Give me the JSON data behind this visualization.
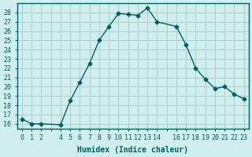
{
  "x": [
    0,
    1,
    2,
    4,
    5,
    6,
    7,
    8,
    9,
    10,
    11,
    12,
    13,
    14,
    16,
    17,
    18,
    19,
    20,
    21,
    22,
    23
  ],
  "y": [
    16.5,
    16.0,
    16.0,
    15.9,
    18.5,
    20.5,
    22.5,
    25.0,
    26.5,
    27.9,
    27.8,
    27.7,
    28.5,
    27.0,
    26.5,
    24.5,
    22.0,
    20.8,
    19.8,
    20.0,
    19.2,
    18.7
  ],
  "line_color": "#006060",
  "marker": "D",
  "marker_size": 2.5,
  "bg_color": "#d0eeee",
  "grid_color": "#b0d0d0",
  "xlabel": "Humidex (Indice chaleur)",
  "xlim": [
    -0.5,
    23.5
  ],
  "ylim": [
    15.5,
    29.0
  ],
  "yticks": [
    16,
    17,
    18,
    19,
    20,
    21,
    22,
    23,
    24,
    25,
    26,
    27,
    28
  ],
  "xticks_all": [
    0,
    1,
    2,
    3,
    4,
    5,
    6,
    7,
    8,
    9,
    10,
    11,
    12,
    13,
    14,
    15,
    16,
    17,
    18,
    19,
    20,
    21,
    22,
    23
  ],
  "xtick_labels": [
    "0",
    "1",
    "2",
    "",
    "4",
    "5",
    "6",
    "7",
    "8",
    "9",
    "10",
    "11",
    "12",
    "13",
    "14",
    "",
    "16",
    "17",
    "18",
    "19",
    "20",
    "21",
    "22",
    "23"
  ],
  "tick_color": "#006060",
  "label_fontsize": 7,
  "tick_fontsize": 6
}
